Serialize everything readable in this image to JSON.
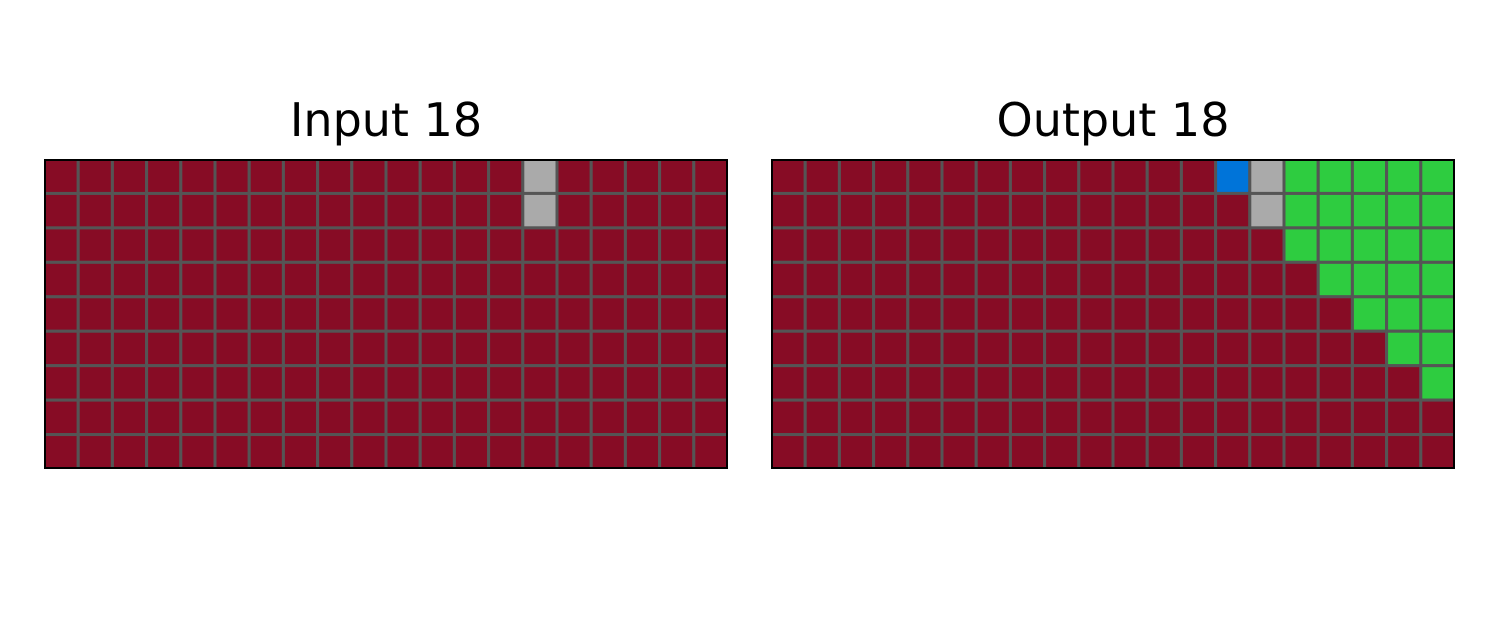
{
  "palette": {
    "0": "#000000",
    "1": "#0074D9",
    "2": "#FF4136",
    "3": "#2ECC40",
    "4": "#FFDC00",
    "5": "#AAAAAA",
    "6": "#F012BE",
    "7": "#FF851B",
    "8": "#7FDBFF",
    "9": "#870C25"
  },
  "grid_line_color": "#555555",
  "panels": [
    {
      "title": "Input 18",
      "grid": [
        [
          9,
          9,
          9,
          9,
          9,
          9,
          9,
          9,
          9,
          9,
          9,
          9,
          9,
          9,
          5,
          9,
          9,
          9,
          9,
          9
        ],
        [
          9,
          9,
          9,
          9,
          9,
          9,
          9,
          9,
          9,
          9,
          9,
          9,
          9,
          9,
          5,
          9,
          9,
          9,
          9,
          9
        ],
        [
          9,
          9,
          9,
          9,
          9,
          9,
          9,
          9,
          9,
          9,
          9,
          9,
          9,
          9,
          9,
          9,
          9,
          9,
          9,
          9
        ],
        [
          9,
          9,
          9,
          9,
          9,
          9,
          9,
          9,
          9,
          9,
          9,
          9,
          9,
          9,
          9,
          9,
          9,
          9,
          9,
          9
        ],
        [
          9,
          9,
          9,
          9,
          9,
          9,
          9,
          9,
          9,
          9,
          9,
          9,
          9,
          9,
          9,
          9,
          9,
          9,
          9,
          9
        ],
        [
          9,
          9,
          9,
          9,
          9,
          9,
          9,
          9,
          9,
          9,
          9,
          9,
          9,
          9,
          9,
          9,
          9,
          9,
          9,
          9
        ],
        [
          9,
          9,
          9,
          9,
          9,
          9,
          9,
          9,
          9,
          9,
          9,
          9,
          9,
          9,
          9,
          9,
          9,
          9,
          9,
          9
        ],
        [
          9,
          9,
          9,
          9,
          9,
          9,
          9,
          9,
          9,
          9,
          9,
          9,
          9,
          9,
          9,
          9,
          9,
          9,
          9,
          9
        ],
        [
          9,
          9,
          9,
          9,
          9,
          9,
          9,
          9,
          9,
          9,
          9,
          9,
          9,
          9,
          9,
          9,
          9,
          9,
          9,
          9
        ]
      ]
    },
    {
      "title": "Output 18",
      "grid": [
        [
          9,
          9,
          9,
          9,
          9,
          9,
          9,
          9,
          9,
          9,
          9,
          9,
          9,
          1,
          5,
          3,
          3,
          3,
          3,
          3
        ],
        [
          9,
          9,
          9,
          9,
          9,
          9,
          9,
          9,
          9,
          9,
          9,
          9,
          9,
          9,
          5,
          3,
          3,
          3,
          3,
          3
        ],
        [
          9,
          9,
          9,
          9,
          9,
          9,
          9,
          9,
          9,
          9,
          9,
          9,
          9,
          9,
          9,
          3,
          3,
          3,
          3,
          3
        ],
        [
          9,
          9,
          9,
          9,
          9,
          9,
          9,
          9,
          9,
          9,
          9,
          9,
          9,
          9,
          9,
          9,
          3,
          3,
          3,
          3
        ],
        [
          9,
          9,
          9,
          9,
          9,
          9,
          9,
          9,
          9,
          9,
          9,
          9,
          9,
          9,
          9,
          9,
          9,
          3,
          3,
          3
        ],
        [
          9,
          9,
          9,
          9,
          9,
          9,
          9,
          9,
          9,
          9,
          9,
          9,
          9,
          9,
          9,
          9,
          9,
          9,
          3,
          3
        ],
        [
          9,
          9,
          9,
          9,
          9,
          9,
          9,
          9,
          9,
          9,
          9,
          9,
          9,
          9,
          9,
          9,
          9,
          9,
          9,
          3
        ],
        [
          9,
          9,
          9,
          9,
          9,
          9,
          9,
          9,
          9,
          9,
          9,
          9,
          9,
          9,
          9,
          9,
          9,
          9,
          9,
          9
        ],
        [
          9,
          9,
          9,
          9,
          9,
          9,
          9,
          9,
          9,
          9,
          9,
          9,
          9,
          9,
          9,
          9,
          9,
          9,
          9,
          9
        ]
      ]
    }
  ]
}
